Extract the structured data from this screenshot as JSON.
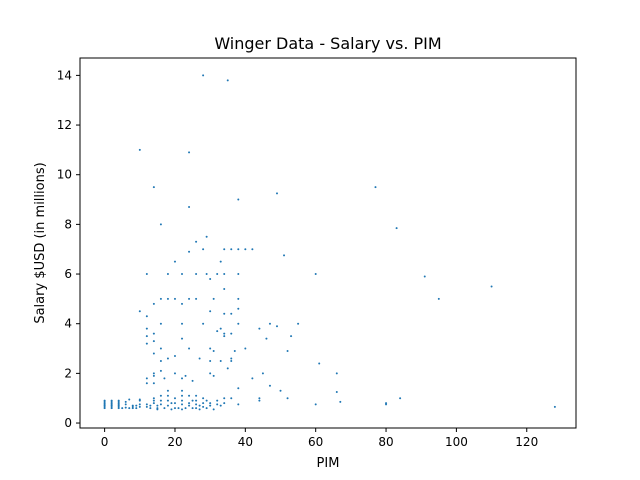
{
  "chart_data": {
    "type": "scatter",
    "title": "Winger Data - Salary vs. PIM",
    "xlabel": "PIM",
    "ylabel": "Salary $USD (in millions)",
    "xlim": [
      -7,
      134
    ],
    "ylim": [
      -0.2,
      14.7
    ],
    "xticks": [
      0,
      20,
      40,
      60,
      80,
      100,
      120
    ],
    "yticks": [
      0,
      2,
      4,
      6,
      8,
      10,
      12,
      14
    ],
    "grid": false,
    "color": "#1f77b4",
    "series": [
      {
        "points": [
          [
            0,
            0.6
          ],
          [
            0,
            0.65
          ],
          [
            0,
            0.7
          ],
          [
            0,
            0.75
          ],
          [
            0,
            0.8
          ],
          [
            0,
            0.85
          ],
          [
            0,
            0.9
          ],
          [
            2,
            0.6
          ],
          [
            2,
            0.65
          ],
          [
            2,
            0.7
          ],
          [
            2,
            0.75
          ],
          [
            2,
            0.8
          ],
          [
            2,
            0.85
          ],
          [
            2,
            0.9
          ],
          [
            4,
            0.6
          ],
          [
            4,
            0.65
          ],
          [
            4,
            0.7
          ],
          [
            4,
            0.75
          ],
          [
            4,
            0.8
          ],
          [
            4,
            0.85
          ],
          [
            4,
            0.9
          ],
          [
            5,
            0.6
          ],
          [
            6,
            0.62
          ],
          [
            6,
            0.75
          ],
          [
            6,
            0.85
          ],
          [
            7,
            0.6
          ],
          [
            7,
            0.95
          ],
          [
            8,
            0.6
          ],
          [
            8,
            0.65
          ],
          [
            8,
            0.7
          ],
          [
            9,
            0.6
          ],
          [
            9,
            0.7
          ],
          [
            10,
            0.65
          ],
          [
            10,
            0.75
          ],
          [
            10,
            0.9
          ],
          [
            10,
            0.95
          ],
          [
            10,
            4.5
          ],
          [
            10,
            11.0
          ],
          [
            12,
            0.65
          ],
          [
            12,
            0.75
          ],
          [
            12,
            1.6
          ],
          [
            12,
            1.8
          ],
          [
            12,
            3.2
          ],
          [
            12,
            3.5
          ],
          [
            12,
            3.8
          ],
          [
            12,
            4.3
          ],
          [
            12,
            6.0
          ],
          [
            13,
            0.6
          ],
          [
            13,
            0.7
          ],
          [
            14,
            0.8
          ],
          [
            14,
            0.9
          ],
          [
            14,
            1.0
          ],
          [
            14,
            1.6
          ],
          [
            14,
            1.9
          ],
          [
            14,
            2.0
          ],
          [
            14,
            2.8
          ],
          [
            14,
            3.3
          ],
          [
            14,
            3.6
          ],
          [
            14,
            4.8
          ],
          [
            14,
            9.5
          ],
          [
            15,
            0.55
          ],
          [
            15,
            0.6
          ],
          [
            15,
            0.7
          ],
          [
            16,
            0.75
          ],
          [
            16,
            0.9
          ],
          [
            16,
            1.1
          ],
          [
            16,
            2.1
          ],
          [
            16,
            2.5
          ],
          [
            16,
            3.0
          ],
          [
            16,
            4.0
          ],
          [
            16,
            5.0
          ],
          [
            16,
            8.0
          ],
          [
            17,
            0.6
          ],
          [
            17,
            1.8
          ],
          [
            18,
            0.7
          ],
          [
            18,
            0.9
          ],
          [
            18,
            1.1
          ],
          [
            18,
            1.3
          ],
          [
            18,
            2.6
          ],
          [
            18,
            5.0
          ],
          [
            18,
            6.0
          ],
          [
            19,
            0.55
          ],
          [
            19,
            0.8
          ],
          [
            20,
            0.6
          ],
          [
            20,
            0.8
          ],
          [
            20,
            1.0
          ],
          [
            20,
            2.0
          ],
          [
            20,
            2.7
          ],
          [
            20,
            5.0
          ],
          [
            20,
            6.5
          ],
          [
            21,
            0.6
          ],
          [
            22,
            0.55
          ],
          [
            22,
            0.75
          ],
          [
            22,
            0.9
          ],
          [
            22,
            1.1
          ],
          [
            22,
            1.3
          ],
          [
            22,
            1.8
          ],
          [
            22,
            3.4
          ],
          [
            22,
            4.0
          ],
          [
            22,
            4.8
          ],
          [
            22,
            6.0
          ],
          [
            23,
            0.6
          ],
          [
            23,
            1.9
          ],
          [
            24,
            0.7
          ],
          [
            24,
            0.8
          ],
          [
            24,
            1.1
          ],
          [
            24,
            3.0
          ],
          [
            24,
            5.0
          ],
          [
            24,
            6.9
          ],
          [
            24,
            8.7
          ],
          [
            24,
            10.9
          ],
          [
            25,
            0.6
          ],
          [
            25,
            0.9
          ],
          [
            25,
            1.7
          ],
          [
            26,
            0.6
          ],
          [
            26,
            0.75
          ],
          [
            26,
            0.9
          ],
          [
            26,
            1.1
          ],
          [
            26,
            5.0
          ],
          [
            26,
            6.0
          ],
          [
            26,
            7.3
          ],
          [
            27,
            0.55
          ],
          [
            27,
            0.7
          ],
          [
            27,
            2.6
          ],
          [
            28,
            0.65
          ],
          [
            28,
            0.8
          ],
          [
            28,
            1.0
          ],
          [
            28,
            4.0
          ],
          [
            28,
            7.0
          ],
          [
            28,
            14.0
          ],
          [
            29,
            0.6
          ],
          [
            29,
            0.9
          ],
          [
            29,
            6.0
          ],
          [
            29,
            7.5
          ],
          [
            30,
            0.7
          ],
          [
            30,
            0.8
          ],
          [
            30,
            2.0
          ],
          [
            30,
            2.5
          ],
          [
            30,
            3.0
          ],
          [
            30,
            4.5
          ],
          [
            30,
            5.8
          ],
          [
            31,
            0.55
          ],
          [
            31,
            1.9
          ],
          [
            31,
            2.9
          ],
          [
            31,
            5.0
          ],
          [
            32,
            0.75
          ],
          [
            32,
            0.9
          ],
          [
            32,
            3.7
          ],
          [
            32,
            6.0
          ],
          [
            33,
            0.7
          ],
          [
            33,
            2.5
          ],
          [
            33,
            3.8
          ],
          [
            33,
            6.5
          ],
          [
            34,
            0.8
          ],
          [
            34,
            1.0
          ],
          [
            34,
            3.5
          ],
          [
            34,
            3.6
          ],
          [
            34,
            4.4
          ],
          [
            34,
            5.4
          ],
          [
            34,
            6.0
          ],
          [
            34,
            7.0
          ],
          [
            35,
            2.2
          ],
          [
            35,
            13.8
          ],
          [
            36,
            1.0
          ],
          [
            36,
            2.5
          ],
          [
            36,
            2.6
          ],
          [
            36,
            3.6
          ],
          [
            36,
            4.4
          ],
          [
            36,
            7.0
          ],
          [
            37,
            2.9
          ],
          [
            38,
            0.75
          ],
          [
            38,
            1.4
          ],
          [
            38,
            4.0
          ],
          [
            38,
            4.6
          ],
          [
            38,
            5.0
          ],
          [
            38,
            6.0
          ],
          [
            38,
            7.0
          ],
          [
            38,
            9.0
          ],
          [
            40,
            3.0
          ],
          [
            40,
            7.0
          ],
          [
            42,
            1.8
          ],
          [
            42,
            7.0
          ],
          [
            44,
            0.9
          ],
          [
            44,
            1.0
          ],
          [
            44,
            3.8
          ],
          [
            45,
            2.0
          ],
          [
            46,
            3.4
          ],
          [
            47,
            4.0
          ],
          [
            47,
            1.5
          ],
          [
            49,
            3.9
          ],
          [
            49,
            9.25
          ],
          [
            50,
            1.3
          ],
          [
            51,
            6.75
          ],
          [
            52,
            1.0
          ],
          [
            52,
            2.9
          ],
          [
            53,
            3.5
          ],
          [
            55,
            4.0
          ],
          [
            60,
            0.75
          ],
          [
            60,
            6.0
          ],
          [
            61,
            2.4
          ],
          [
            66,
            1.25
          ],
          [
            66,
            2.0
          ],
          [
            67,
            0.85
          ],
          [
            77,
            9.5
          ],
          [
            80,
            0.8
          ],
          [
            80,
            0.75
          ],
          [
            83,
            7.85
          ],
          [
            84,
            1.0
          ],
          [
            91,
            5.9
          ],
          [
            95,
            5.0
          ],
          [
            110,
            5.5
          ],
          [
            128,
            0.65
          ]
        ]
      }
    ]
  }
}
